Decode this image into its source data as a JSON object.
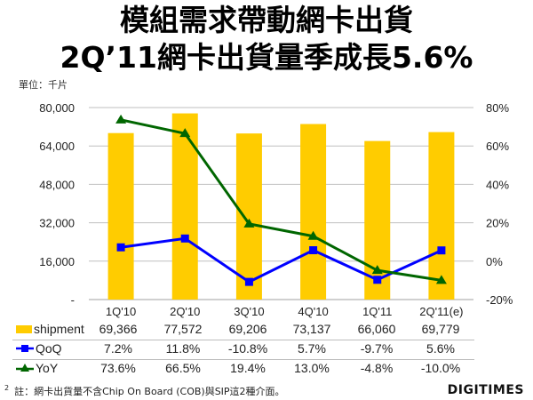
{
  "header": {
    "title_line1": "模組需求帶動網卡出貨",
    "title_line2": "2Q’11網卡出貨量季成長5.6%",
    "unit": "單位：千片"
  },
  "colors": {
    "shipment": "#FFCC00",
    "qoq": "#0000FF",
    "yoy": "#006600",
    "grid": "#BFBFBF"
  },
  "chart_data": {
    "type": "bar",
    "title": "2Q’11網卡出貨量季成長5.6%",
    "categories": [
      "1Q'10",
      "2Q'10",
      "3Q'10",
      "4Q'10",
      "1Q'11",
      "2Q'11(e)"
    ],
    "series": [
      {
        "name": "shipment",
        "type": "bar",
        "axis": "left",
        "values": [
          69366,
          77572,
          69206,
          73137,
          66060,
          69779
        ],
        "labels": [
          "69,366",
          "77,572",
          "69,206",
          "73,137",
          "66,060",
          "69,779"
        ]
      },
      {
        "name": "QoQ",
        "type": "line",
        "marker": "square",
        "axis": "right",
        "values": [
          7.2,
          11.8,
          -10.8,
          5.7,
          -9.7,
          5.6
        ],
        "labels": [
          "7.2%",
          "11.8%",
          "-10.8%",
          "5.7%",
          "-9.7%",
          "5.6%"
        ]
      },
      {
        "name": "YoY",
        "type": "line",
        "marker": "triangle",
        "axis": "right",
        "values": [
          73.6,
          66.5,
          19.4,
          13.0,
          -4.8,
          -10.0
        ],
        "labels": [
          "73.6%",
          "66.5%",
          "19.4%",
          "13.0%",
          "-4.8%",
          "-10.0%"
        ]
      }
    ],
    "ylabel": "單位：千片",
    "ylim": [
      0,
      80000
    ],
    "y_ticks": [
      "-",
      "16,000",
      "32,000",
      "48,000",
      "64,000",
      "80,000"
    ],
    "y2lim": [
      -20,
      80
    ],
    "y2_ticks": [
      "-20%",
      "0%",
      "20%",
      "40%",
      "60%",
      "80%"
    ],
    "grid": true,
    "legend_position": "data-table-below"
  },
  "table": {
    "rows": [
      {
        "label": "shipment",
        "values": [
          "69,366",
          "77,572",
          "69,206",
          "73,137",
          "66,060",
          "69,779"
        ]
      },
      {
        "label": "QoQ",
        "values": [
          "7.2%",
          "11.8%",
          "-10.8%",
          "5.7%",
          "-9.7%",
          "5.6%"
        ]
      },
      {
        "label": "YoY",
        "values": [
          "73.6%",
          "66.5%",
          "19.4%",
          "13.0%",
          "-4.8%",
          "-10.0%"
        ]
      }
    ]
  },
  "footer": {
    "page_number": "2",
    "note": "註：網卡出貨量不含Chip On Board (COB)與SIP這2種介面。",
    "logo": "DIGITIMES"
  }
}
